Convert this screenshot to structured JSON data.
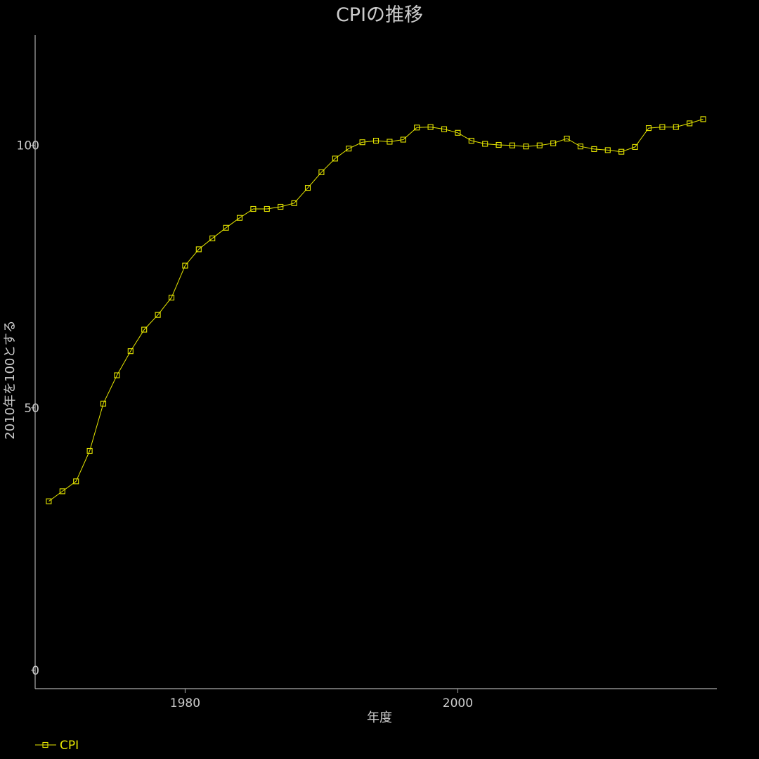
{
  "chart_data": {
    "type": "line",
    "title": "CPIの推移",
    "xlabel": "年度",
    "ylabel": "2010年を100とする",
    "xlim": [
      1969,
      2019
    ],
    "ylim": [
      -3.5,
      121
    ],
    "x_ticks": [
      1980,
      2000
    ],
    "y_ticks": [
      0,
      50,
      100
    ],
    "grid": false,
    "legend_position": "bottom-left",
    "series": [
      {
        "name": "CPI",
        "color": "#e6e600",
        "marker": "square",
        "x": [
          1970,
          1971,
          1972,
          1973,
          1974,
          1975,
          1976,
          1977,
          1978,
          1979,
          1980,
          1981,
          1982,
          1983,
          1984,
          1985,
          1986,
          1987,
          1988,
          1989,
          1990,
          1991,
          1992,
          1993,
          1994,
          1995,
          1996,
          1997,
          1998,
          1999,
          2000,
          2001,
          2002,
          2003,
          2004,
          2005,
          2006,
          2007,
          2008,
          2009,
          2010,
          2011,
          2012,
          2013,
          2014,
          2015,
          2016,
          2017,
          2018
        ],
        "y": [
          32.2,
          34.1,
          36.0,
          41.8,
          50.8,
          56.2,
          60.8,
          64.9,
          67.7,
          71.0,
          77.1,
          80.2,
          82.3,
          84.3,
          86.2,
          87.9,
          87.9,
          88.3,
          89.0,
          91.9,
          94.9,
          97.5,
          99.4,
          100.6,
          100.9,
          100.7,
          101.1,
          103.4,
          103.5,
          103.1,
          102.4,
          100.9,
          100.3,
          100.1,
          100.0,
          99.8,
          100.0,
          100.4,
          101.3,
          99.8,
          99.3,
          99.1,
          98.8,
          99.7,
          103.3,
          103.5,
          103.5,
          104.2,
          105.0
        ]
      }
    ]
  }
}
